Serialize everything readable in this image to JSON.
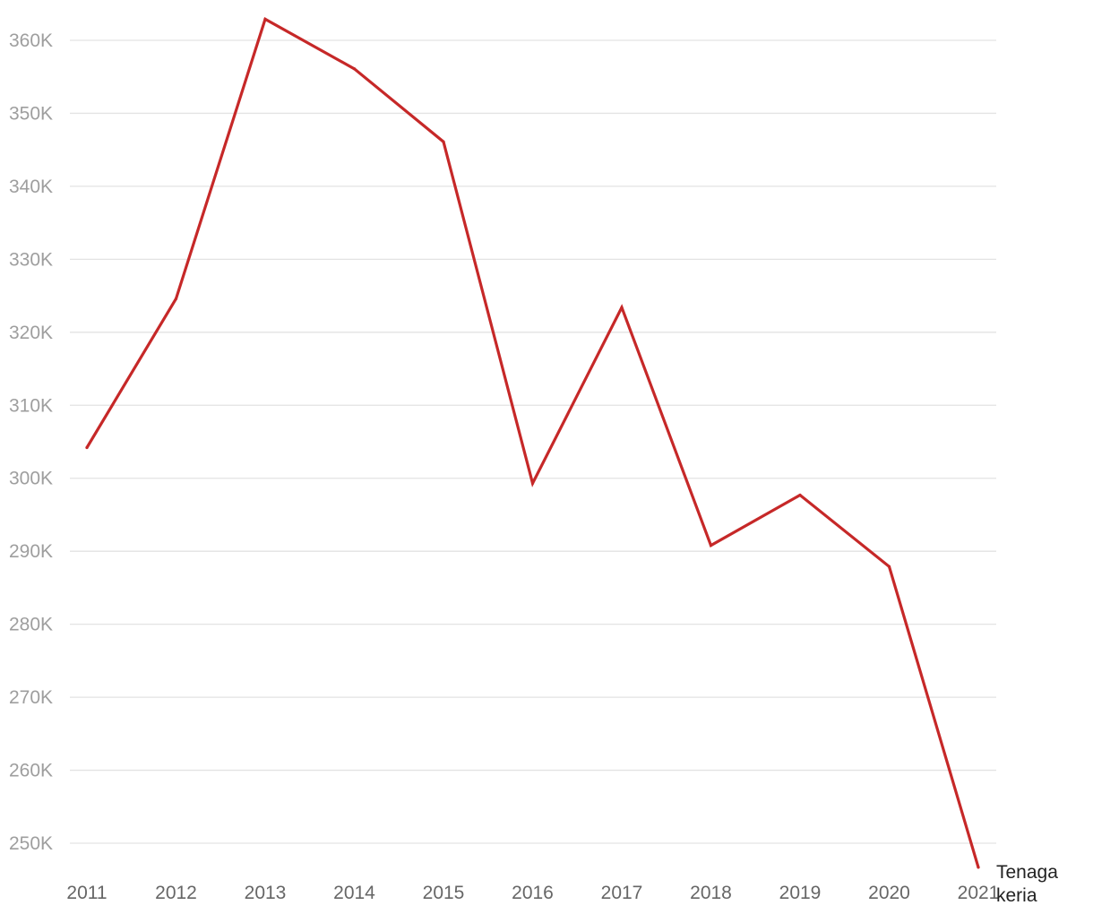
{
  "chart_data": {
    "type": "line",
    "title": "",
    "xlabel": "",
    "ylabel": "",
    "x": [
      "2011",
      "2012",
      "2013",
      "2014",
      "2015",
      "2016",
      "2017",
      "2018",
      "2019",
      "2020",
      "2021"
    ],
    "ylim": [
      250000,
      360000
    ],
    "yticks": [
      250000,
      260000,
      270000,
      280000,
      290000,
      300000,
      310000,
      320000,
      330000,
      340000,
      350000,
      360000
    ],
    "ytick_labels": [
      "250K",
      "260K",
      "270K",
      "280K",
      "290K",
      "300K",
      "310K",
      "320K",
      "330K",
      "340K",
      "350K",
      "360K"
    ],
    "grid": true,
    "series": [
      {
        "name_lines": [
          "Tenaga",
          "keria"
        ],
        "color": "#c62828",
        "values": [
          304200,
          324600,
          362900,
          356100,
          346100,
          299300,
          323400,
          290800,
          297700,
          287900,
          246700
        ]
      }
    ]
  }
}
